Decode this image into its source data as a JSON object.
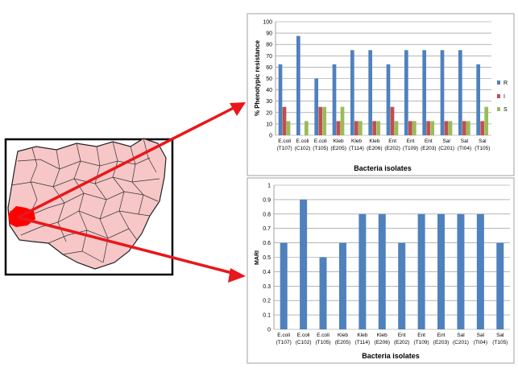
{
  "colors": {
    "R": "#4f81bd",
    "I": "#c0504d",
    "S": "#9bbb59",
    "map_fill": "#f7c6c7",
    "map_highlight": "#ff0000",
    "arrow": "#e8171b"
  },
  "chart_data": [
    {
      "type": "bar",
      "categories": [
        [
          "E.coli",
          "(T107)"
        ],
        [
          "E.coli",
          "(C102)"
        ],
        [
          "E.coli",
          "(T105)"
        ],
        [
          "Kleb",
          "(E205)"
        ],
        [
          "Kleb",
          "(T114)"
        ],
        [
          "Kleb",
          "(E206)"
        ],
        [
          "Ent",
          "(E202)"
        ],
        [
          "Ent",
          "(T109)"
        ],
        [
          "Ent",
          "(E203)"
        ],
        [
          "Sal",
          "(C201)"
        ],
        [
          "Sal",
          "(TI04)"
        ],
        [
          "Sal",
          "(T105)"
        ]
      ],
      "series": [
        {
          "name": "R",
          "values": [
            62.5,
            87.5,
            50,
            62.5,
            75,
            75,
            62.5,
            75,
            75,
            75,
            75,
            62.5
          ]
        },
        {
          "name": "I",
          "values": [
            25,
            0,
            25,
            12.5,
            12.5,
            12.5,
            25,
            12.5,
            12.5,
            12.5,
            12.5,
            12.5
          ]
        },
        {
          "name": "S",
          "values": [
            12.5,
            12.5,
            25,
            25,
            12.5,
            12.5,
            12.5,
            12.5,
            12.5,
            12.5,
            12.5,
            25
          ]
        }
      ],
      "xlabel": "Bacteria isolates",
      "ylabel": "% Phenotypic resistance",
      "ylim": [
        0,
        100
      ],
      "yticks": [
        "0",
        "10",
        "20",
        "30",
        "40",
        "50",
        "60",
        "70",
        "80",
        "90",
        "100"
      ],
      "grid": true,
      "legend": "right"
    },
    {
      "type": "bar",
      "categories": [
        [
          "E.coli",
          "(T107)"
        ],
        [
          "E.coli",
          "(C102)"
        ],
        [
          "E.coli",
          "(T105)"
        ],
        [
          "Kleb",
          "(E205)"
        ],
        [
          "Kleb",
          "(T114)"
        ],
        [
          "Kleb",
          "(E206)"
        ],
        [
          "Ent",
          "(E202)"
        ],
        [
          "Ent",
          "(T109)"
        ],
        [
          "Ent",
          "(E203)"
        ],
        [
          "Sal",
          "(C201)"
        ],
        [
          "Sal",
          "(TI04)"
        ],
        [
          "Sal",
          "(T105)"
        ]
      ],
      "values": [
        0.6,
        0.9,
        0.5,
        0.6,
        0.8,
        0.8,
        0.6,
        0.8,
        0.8,
        0.8,
        0.8,
        0.6
      ],
      "xlabel": "Bacteria isolates",
      "ylabel": "MARI",
      "ylim": [
        0,
        1
      ],
      "yticks": [
        "0",
        "0.1",
        "0.2",
        "0.3",
        "0.4",
        "0.5",
        "0.6",
        "0.7",
        "0.8",
        "0.9",
        "1"
      ],
      "grid": true
    }
  ]
}
